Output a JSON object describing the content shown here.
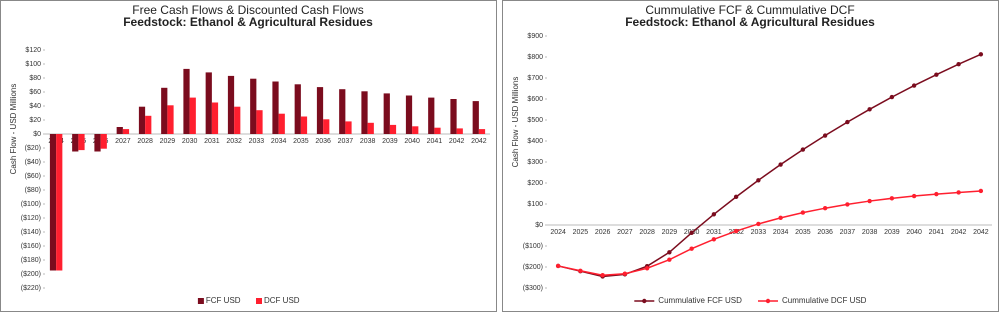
{
  "chart_data": [
    {
      "type": "bar",
      "title": "Free Cash Flows & Discounted Cash Flows",
      "subtitle": "Feedstock: Ethanol & Agricultural Residues",
      "y_label": "Cash Flow - USD Millions",
      "categories": [
        "2024",
        "2025",
        "2026",
        "2027",
        "2028",
        "2029",
        "2030",
        "2031",
        "2032",
        "2033",
        "2034",
        "2035",
        "2036",
        "2037",
        "2038",
        "2039",
        "2040",
        "2041",
        "2042",
        "2042"
      ],
      "series": [
        {
          "name": "FCF USD",
          "color": "#7b0c1e",
          "values": [
            -195,
            -25,
            -25,
            10,
            39,
            66,
            93,
            88,
            83,
            79,
            75,
            71,
            67,
            64,
            61,
            58,
            55,
            52,
            50,
            47
          ]
        },
        {
          "name": "DCF USD",
          "color": "#ff1f2f",
          "values": [
            -195,
            -23,
            -21,
            7,
            26,
            41,
            52,
            45,
            39,
            34,
            29,
            25,
            21,
            18,
            16,
            13,
            11,
            9,
            8,
            7
          ]
        }
      ],
      "ylim": [
        -220,
        120
      ],
      "yticks": [
        {
          "value": 120,
          "label": "$120"
        },
        {
          "value": 100,
          "label": "$100"
        },
        {
          "value": 80,
          "label": "$80"
        },
        {
          "value": 60,
          "label": "$60"
        },
        {
          "value": 40,
          "label": "$40"
        },
        {
          "value": 20,
          "label": "$20"
        },
        {
          "value": 0,
          "label": "$0"
        },
        {
          "value": -20,
          "label": "($20)"
        },
        {
          "value": -40,
          "label": "($40)"
        },
        {
          "value": -60,
          "label": "($60)"
        },
        {
          "value": -80,
          "label": "($80)"
        },
        {
          "value": -100,
          "label": "($100)"
        },
        {
          "value": -120,
          "label": "($120)"
        },
        {
          "value": -140,
          "label": "($140)"
        },
        {
          "value": -160,
          "label": "($160)"
        },
        {
          "value": -180,
          "label": "($180)"
        },
        {
          "value": -200,
          "label": "($200)"
        },
        {
          "value": -220,
          "label": "($220)"
        }
      ],
      "negative_tick_color": "#e0001a",
      "legend": "bottom"
    },
    {
      "type": "line",
      "title": "Cummulative FCF & Cummulative DCF",
      "subtitle": "Feedstock: Ethanol & Agricultural Residues",
      "y_label": "Cash Flow - USD  Millions",
      "categories": [
        "2024",
        "2025",
        "2026",
        "2027",
        "2028",
        "2029",
        "2030",
        "2031",
        "2032",
        "2033",
        "2034",
        "2035",
        "2036",
        "2037",
        "2038",
        "2039",
        "2040",
        "2041",
        "2042",
        "2042"
      ],
      "series": [
        {
          "name": "Cummulative FCF USD",
          "color": "#7b0c1e",
          "values": [
            -195,
            -220,
            -245,
            -235,
            -196,
            -130,
            -37,
            51,
            134,
            213,
            288,
            359,
            426,
            490,
            551,
            609,
            664,
            716,
            766,
            813
          ]
        },
        {
          "name": "Cummulative DCF USD",
          "color": "#ff1f2f",
          "values": [
            -195,
            -218,
            -239,
            -232,
            -206,
            -165,
            -113,
            -68,
            -29,
            5,
            34,
            59,
            80,
            98,
            114,
            127,
            138,
            147,
            155,
            162
          ]
        }
      ],
      "ylim": [
        -300,
        900
      ],
      "yticks": [
        {
          "value": 900,
          "label": "$900"
        },
        {
          "value": 800,
          "label": "$800"
        },
        {
          "value": 700,
          "label": "$700"
        },
        {
          "value": 600,
          "label": "$600"
        },
        {
          "value": 500,
          "label": "$500"
        },
        {
          "value": 400,
          "label": "$400"
        },
        {
          "value": 300,
          "label": "$300"
        },
        {
          "value": 200,
          "label": "$200"
        },
        {
          "value": 100,
          "label": "$100"
        },
        {
          "value": 0,
          "label": "$0"
        },
        {
          "value": -100,
          "label": "($100)"
        },
        {
          "value": -200,
          "label": "($200)"
        },
        {
          "value": -300,
          "label": "($300)"
        }
      ],
      "negative_tick_color": "#e0001a",
      "legend": "bottom"
    }
  ]
}
